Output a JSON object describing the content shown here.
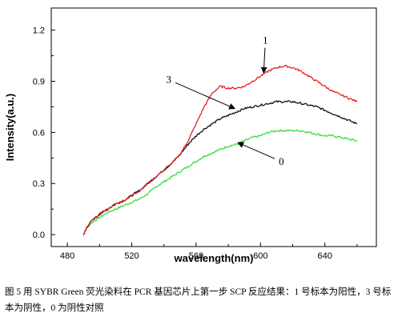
{
  "chart_data": {
    "type": "line",
    "xlabel": "wavelength(nm)",
    "ylabel": "Intensity(a.u.)",
    "xlim": [
      470,
      672
    ],
    "ylim": [
      -0.07,
      1.33
    ],
    "x_ticks": [
      480,
      520,
      560,
      600,
      640
    ],
    "x_tick_labels": [
      "480",
      "520",
      "560",
      "600",
      "640"
    ],
    "y_ticks": [
      0.0,
      0.3,
      0.6,
      0.9,
      1.2
    ],
    "y_tick_labels": [
      "0.0",
      "0.3",
      "0.6",
      "0.9",
      "1.2"
    ],
    "grid": false,
    "legend": "none",
    "series": [
      {
        "name": "1",
        "color": "#e02424",
        "x": [
          490,
          492,
          495,
          500,
          505,
          510,
          515,
          520,
          525,
          530,
          535,
          540,
          545,
          550,
          555,
          560,
          565,
          570,
          575,
          580,
          585,
          590,
          595,
          600,
          605,
          610,
          615,
          620,
          625,
          630,
          635,
          640,
          645,
          650,
          655,
          660
        ],
        "y": [
          0.0,
          0.04,
          0.08,
          0.12,
          0.15,
          0.18,
          0.2,
          0.23,
          0.26,
          0.3,
          0.34,
          0.38,
          0.42,
          0.47,
          0.55,
          0.65,
          0.75,
          0.83,
          0.87,
          0.86,
          0.86,
          0.87,
          0.9,
          0.93,
          0.96,
          0.98,
          0.99,
          0.98,
          0.96,
          0.93,
          0.9,
          0.87,
          0.84,
          0.82,
          0.8,
          0.78
        ]
      },
      {
        "name": "3",
        "color": "#111111",
        "x": [
          490,
          492,
          495,
          500,
          505,
          510,
          515,
          520,
          525,
          530,
          535,
          540,
          545,
          550,
          555,
          560,
          565,
          570,
          575,
          580,
          585,
          590,
          595,
          600,
          605,
          610,
          615,
          620,
          625,
          630,
          635,
          640,
          645,
          650,
          655,
          660
        ],
        "y": [
          0.0,
          0.04,
          0.08,
          0.12,
          0.15,
          0.18,
          0.2,
          0.23,
          0.26,
          0.3,
          0.34,
          0.38,
          0.42,
          0.47,
          0.53,
          0.58,
          0.62,
          0.65,
          0.68,
          0.7,
          0.72,
          0.74,
          0.75,
          0.76,
          0.77,
          0.78,
          0.78,
          0.78,
          0.77,
          0.76,
          0.75,
          0.73,
          0.71,
          0.69,
          0.67,
          0.65
        ]
      },
      {
        "name": "0",
        "color": "#3ddc3d",
        "x": [
          490,
          492,
          495,
          500,
          505,
          510,
          515,
          520,
          525,
          530,
          535,
          540,
          545,
          550,
          555,
          560,
          565,
          570,
          575,
          580,
          585,
          590,
          595,
          600,
          605,
          610,
          615,
          620,
          625,
          630,
          635,
          640,
          645,
          650,
          655,
          660
        ],
        "y": [
          0.0,
          0.04,
          0.07,
          0.1,
          0.13,
          0.15,
          0.17,
          0.19,
          0.21,
          0.24,
          0.28,
          0.31,
          0.34,
          0.37,
          0.4,
          0.43,
          0.46,
          0.48,
          0.5,
          0.52,
          0.53,
          0.55,
          0.57,
          0.58,
          0.6,
          0.61,
          0.61,
          0.61,
          0.61,
          0.6,
          0.59,
          0.58,
          0.58,
          0.57,
          0.56,
          0.55
        ]
      }
    ],
    "annotations": [
      {
        "text": "1",
        "series": "1",
        "label_x": 603,
        "label_y": 1.12,
        "point_x": 602,
        "point_y": 0.95
      },
      {
        "text": "3",
        "series": "3",
        "label_x": 543,
        "label_y": 0.89,
        "point_x": 584,
        "point_y": 0.74
      },
      {
        "text": "0",
        "series": "0",
        "label_x": 613,
        "label_y": 0.41,
        "point_x": 586,
        "point_y": 0.54
      }
    ]
  },
  "caption": "图 5 用 SYBR Green 荧光染料在 PCR 基因芯片上第一步 SCP 反应结果：1 号标本为阳性，3 号标本为阴性，0 为阴性对照"
}
